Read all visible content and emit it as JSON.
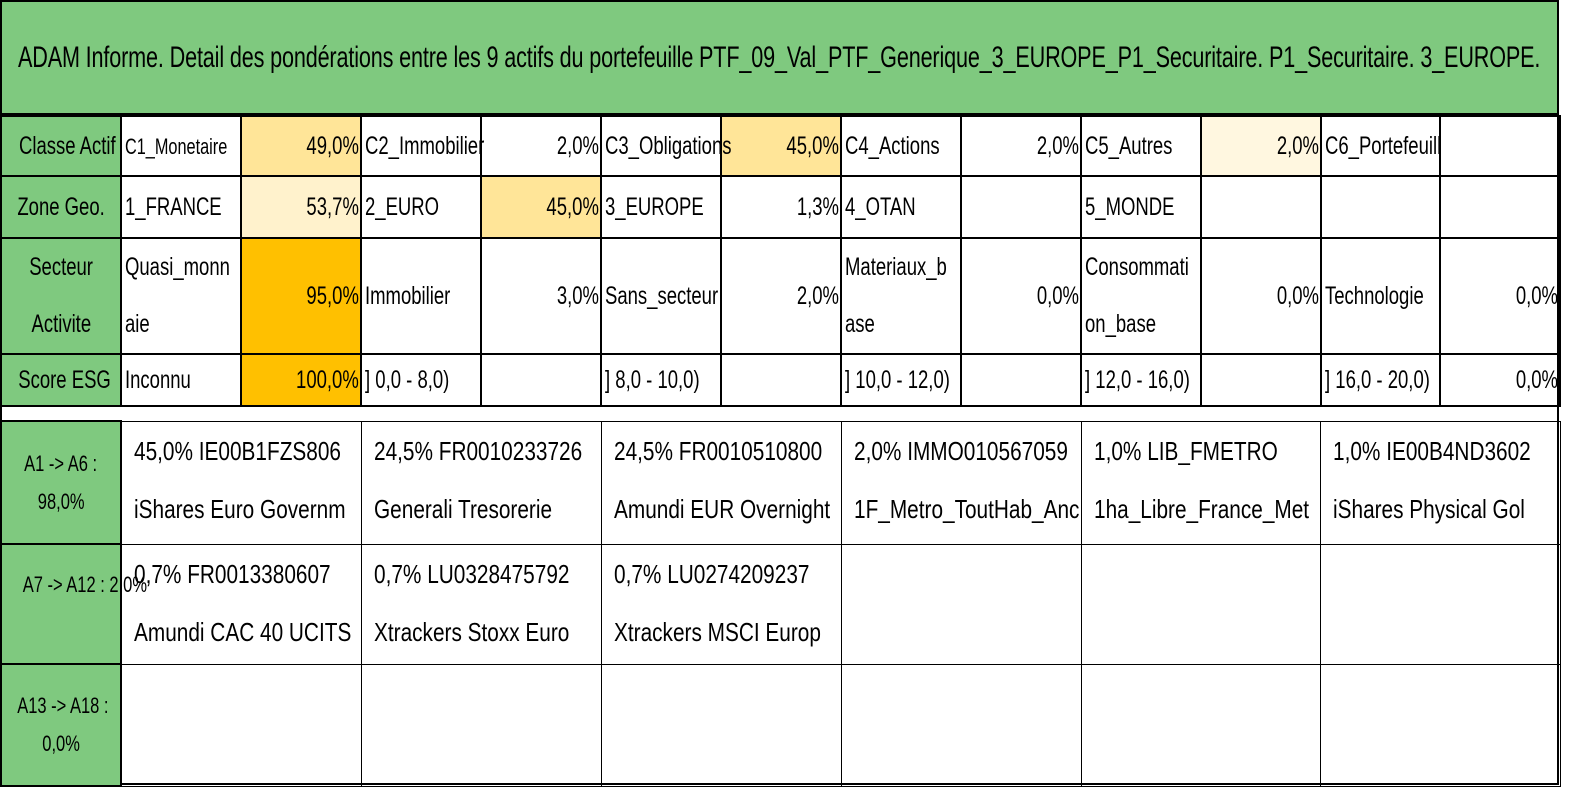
{
  "title": "ADAM Informe. Detail des pondérations entre les 9 actifs du portefeuille PTF_09_Val_PTF_Generique_3_EUROPE_P1_Securitaire. P1_Securitaire. 3_EUROPE.",
  "classe_actif": {
    "header": "Classe Actif",
    "items": [
      {
        "label": "C1_Monetaire",
        "pct": "49,0%"
      },
      {
        "label": "C2_Immobilier",
        "pct": "2,0%"
      },
      {
        "label": "C3_Obligations",
        "pct": "45,0%"
      },
      {
        "label": "C4_Actions",
        "pct": "2,0%"
      },
      {
        "label": "C5_Autres",
        "pct": "2,0%"
      },
      {
        "label": "C6_Portefeuill",
        "pct": ""
      }
    ]
  },
  "zone_geo": {
    "header": "Zone Geo.",
    "items": [
      {
        "label": "1_FRANCE",
        "pct": "53,7%"
      },
      {
        "label": "2_EURO",
        "pct": "45,0%"
      },
      {
        "label": "3_EUROPE",
        "pct": "1,3%"
      },
      {
        "label": "4_OTAN",
        "pct": ""
      },
      {
        "label": "5_MONDE",
        "pct": ""
      },
      {
        "label": "",
        "pct": ""
      }
    ]
  },
  "secteur": {
    "header_line1": "Secteur",
    "header_line2": "Activite",
    "items": [
      {
        "label": "Quasi_monnaie",
        "pct": "95,0%"
      },
      {
        "label": "Immobilier",
        "pct": "3,0%"
      },
      {
        "label": "Sans_secteur",
        "pct": "2,0%"
      },
      {
        "label": "Materiaux_base",
        "pct": "0,0%"
      },
      {
        "label": "Consommation_base",
        "pct": "0,0%"
      },
      {
        "label": "Technologie",
        "pct": "0,0%"
      }
    ]
  },
  "score_esg": {
    "header": "Score ESG",
    "items": [
      {
        "label": "Inconnu",
        "pct": "100,0%"
      },
      {
        "label": "] 0,0 - 8,0)",
        "pct": ""
      },
      {
        "label": "] 8,0 - 10,0)",
        "pct": ""
      },
      {
        "label": "] 10,0 - 12,0)",
        "pct": ""
      },
      {
        "label": "] 12,0 - 16,0)",
        "pct": ""
      },
      {
        "label": "] 16,0 - 20,0)",
        "pct": "0,0%"
      }
    ]
  },
  "assets": [
    {
      "header_line1": "A1 -> A6 :",
      "header_line2": "98,0%",
      "items": [
        {
          "line1": "45,0% IE00B1FZS806",
          "line2": "iShares Euro Governm"
        },
        {
          "line1": "24,5% FR0010233726",
          "line2": "Generali Tresorerie"
        },
        {
          "line1": "24,5% FR0010510800",
          "line2": "Amundi EUR Overnight"
        },
        {
          "line1": "2,0% IMMO010567059",
          "line2": "1F_Metro_ToutHab_Anc"
        },
        {
          "line1": "1,0% LIB_FMETRO",
          "line2": "1ha_Libre_France_Met"
        },
        {
          "line1": "1,0% IE00B4ND3602",
          "line2": "iShares Physical Gol"
        }
      ]
    },
    {
      "header_line1": "A7 -> A12 : 2,0%",
      "header_line2": "",
      "items": [
        {
          "line1": "0,7% FR0013380607",
          "line2": "Amundi CAC 40 UCITS"
        },
        {
          "line1": "0,7% LU0328475792",
          "line2": "Xtrackers Stoxx Euro"
        },
        {
          "line1": "0,7% LU0274209237",
          "line2": "Xtrackers MSCI Europ"
        },
        {
          "line1": "",
          "line2": ""
        },
        {
          "line1": "",
          "line2": ""
        },
        {
          "line1": "",
          "line2": ""
        }
      ]
    },
    {
      "header_line1": "A13 -> A18 :",
      "header_line2": "0,0%",
      "items": [
        {
          "line1": "",
          "line2": ""
        },
        {
          "line1": "",
          "line2": ""
        },
        {
          "line1": "",
          "line2": ""
        },
        {
          "line1": "",
          "line2": ""
        },
        {
          "line1": "",
          "line2": ""
        },
        {
          "line1": "",
          "line2": ""
        }
      ]
    }
  ]
}
